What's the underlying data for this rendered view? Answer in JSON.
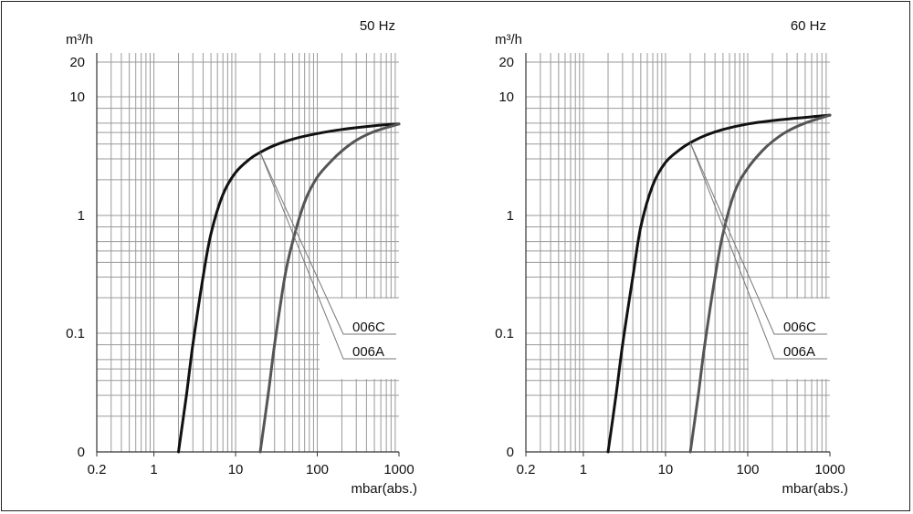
{
  "chart_data": [
    {
      "type": "line",
      "title": "50 Hz",
      "xlabel": "mbar(abs.)",
      "ylabel": "m³/h",
      "x_scale": "log",
      "y_scale": "log (0 at bottom)",
      "xlim": [
        0.2,
        1000
      ],
      "ylim": [
        0,
        20
      ],
      "x_ticks": [
        "0.2",
        "1",
        "10",
        "100",
        "1000"
      ],
      "y_ticks": [
        "0",
        "0.1",
        "1",
        "10",
        "20"
      ],
      "grid": true,
      "legend": "leader lines, lower right",
      "series": [
        {
          "name": "006C",
          "color": "#111111",
          "x": [
            2,
            2.5,
            3,
            4,
            5,
            7,
            10,
            15,
            20,
            30,
            50,
            100,
            200,
            500,
            1000
          ],
          "y": [
            0,
            0.03,
            0.08,
            0.3,
            0.7,
            1.5,
            2.3,
            3.0,
            3.4,
            3.9,
            4.4,
            4.9,
            5.3,
            5.7,
            5.9
          ]
        },
        {
          "name": "006A",
          "color": "#555555",
          "x": [
            20,
            25,
            30,
            40,
            50,
            70,
            100,
            150,
            200,
            300,
            500,
            1000
          ],
          "y": [
            0,
            0.03,
            0.08,
            0.3,
            0.6,
            1.3,
            2.1,
            2.9,
            3.5,
            4.3,
            5.1,
            5.9
          ]
        }
      ]
    },
    {
      "type": "line",
      "title": "60 Hz",
      "xlabel": "mbar(abs.)",
      "ylabel": "m³/h",
      "x_scale": "log",
      "y_scale": "log (0 at bottom)",
      "xlim": [
        0.2,
        1000
      ],
      "ylim": [
        0,
        20
      ],
      "x_ticks": [
        "0.2",
        "1",
        "10",
        "100",
        "1000"
      ],
      "y_ticks": [
        "0",
        "0.1",
        "1",
        "10",
        "20"
      ],
      "grid": true,
      "legend": "leader lines, lower right",
      "series": [
        {
          "name": "006C",
          "color": "#111111",
          "x": [
            2,
            2.5,
            3,
            4,
            5,
            7,
            10,
            15,
            20,
            30,
            50,
            100,
            200,
            500,
            1000
          ],
          "y": [
            0,
            0.03,
            0.08,
            0.3,
            0.8,
            1.8,
            2.8,
            3.6,
            4.1,
            4.7,
            5.3,
            5.9,
            6.3,
            6.7,
            7.0
          ]
        },
        {
          "name": "006A",
          "color": "#555555",
          "x": [
            20,
            25,
            30,
            40,
            50,
            70,
            100,
            150,
            200,
            300,
            500,
            1000
          ],
          "y": [
            0,
            0.03,
            0.08,
            0.3,
            0.7,
            1.6,
            2.5,
            3.5,
            4.2,
            5.1,
            6.0,
            7.0
          ]
        }
      ]
    }
  ]
}
